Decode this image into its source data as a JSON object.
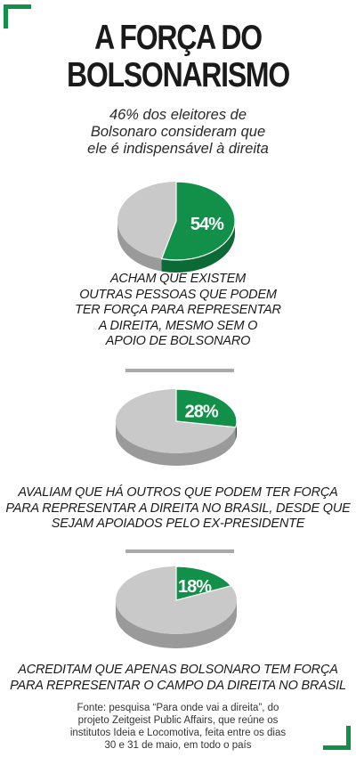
{
  "title": [
    "A FORÇA DO",
    "BOLSONARISMO"
  ],
  "subtitle": [
    "46% dos eleitores de",
    "Bolsonaro consideram que",
    "ele é indispensável à direita"
  ],
  "chart_data": [
    {
      "type": "pie",
      "values": [
        54,
        46
      ],
      "highlight_label": "54%",
      "description": [
        "ACHAM QUE EXISTEM",
        "OUTRAS PESSOAS QUE PODEM",
        "TER FORÇA PARA REPRESENTAR",
        "A DIREITA, MESMO SEM O",
        "APOIO DE BOLSONARO"
      ]
    },
    {
      "type": "pie",
      "values": [
        28,
        72
      ],
      "highlight_label": "28%",
      "description": [
        "AVALIAM QUE HÁ OUTROS QUE PODEM TER FORÇA",
        "PARA REPRESENTAR A DIREITA NO BRASIL, DESDE QUE",
        "SEJAM APOIADOS PELO EX-PRESIDENTE"
      ]
    },
    {
      "type": "pie",
      "values": [
        18,
        82
      ],
      "highlight_label": "18%",
      "description": [
        "ACREDITAM QUE APENAS BOLSONARO TEM FORÇA",
        "PARA REPRESENTAR O CAMPO DA DIREITA NO BRASIL"
      ]
    }
  ],
  "source": [
    "Fonte: pesquisa “Para onde vai a direita”, do",
    "projeto Zeitgeist Public Affairs, que reúne os",
    "institutos Ideia e Locomotiva, feita entre os dias",
    "30 e 31 de maio, em todo o país"
  ],
  "colors": {
    "accent": "#12904a",
    "accent_side": "#0b6a35",
    "gray": "#c9c9c9",
    "gray_side": "#9a9a9a",
    "divider": "#a9a9a9"
  }
}
